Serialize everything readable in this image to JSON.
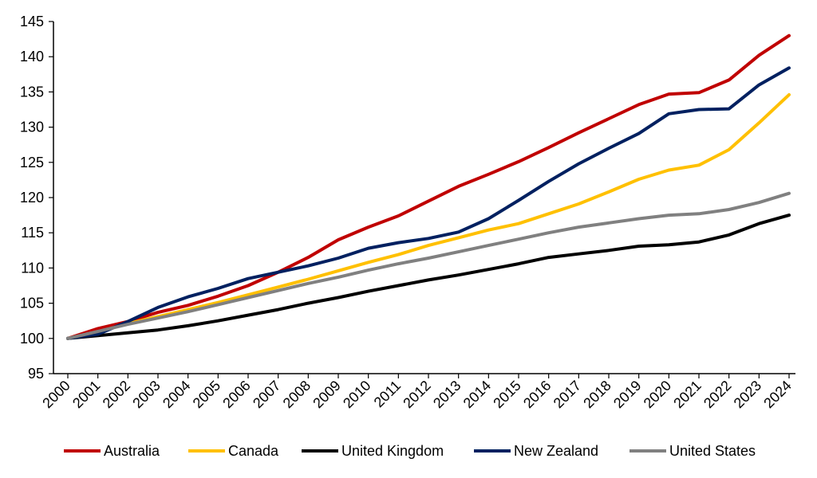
{
  "chart_data": {
    "type": "line",
    "title": "",
    "xlabel": "",
    "ylabel": "",
    "ylim": [
      95,
      145
    ],
    "y_ticks": [
      "95",
      "100",
      "105",
      "110",
      "115",
      "120",
      "125",
      "130",
      "135",
      "140",
      "145"
    ],
    "categories": [
      "2000",
      "2001",
      "2002",
      "2003",
      "2004",
      "2005",
      "2006",
      "2007",
      "2008",
      "2009",
      "2010",
      "2011",
      "2012",
      "2013",
      "2014",
      "2015",
      "2016",
      "2017",
      "2018",
      "2019",
      "2020",
      "2021",
      "2022",
      "2023",
      "2024"
    ],
    "grid": false,
    "legend_position": "bottom",
    "series": [
      {
        "name": "Australia",
        "color": "#C00000",
        "values": [
          100,
          101.4,
          102.4,
          103.7,
          104.7,
          106.0,
          107.5,
          109.4,
          111.5,
          114.0,
          115.8,
          117.4,
          119.5,
          121.6,
          123.3,
          125.1,
          127.1,
          129.2,
          131.2,
          133.2,
          134.7,
          134.9,
          136.7,
          140.2,
          143.0
        ]
      },
      {
        "name": "Canada",
        "color": "#FFC000",
        "values": [
          100,
          100.9,
          102.1,
          103.1,
          104.1,
          105.1,
          106.2,
          107.3,
          108.4,
          109.6,
          110.8,
          111.9,
          113.2,
          114.3,
          115.4,
          116.3,
          117.7,
          119.1,
          120.8,
          122.6,
          123.9,
          124.6,
          126.8,
          130.6,
          134.6
        ]
      },
      {
        "name": "United Kingdom",
        "color": "#000000",
        "values": [
          100,
          100.4,
          100.8,
          101.2,
          101.8,
          102.5,
          103.3,
          104.1,
          105.0,
          105.8,
          106.7,
          107.5,
          108.3,
          109.0,
          109.8,
          110.6,
          111.5,
          112.0,
          112.5,
          113.1,
          113.3,
          113.7,
          114.7,
          116.3,
          117.5
        ]
      },
      {
        "name": "New Zealand",
        "color": "#002060",
        "values": [
          100,
          100.6,
          102.4,
          104.4,
          105.9,
          107.1,
          108.5,
          109.4,
          110.3,
          111.4,
          112.8,
          113.6,
          114.2,
          115.1,
          117.0,
          119.6,
          122.3,
          124.8,
          127.0,
          129.1,
          131.9,
          132.5,
          132.6,
          136.0,
          138.4
        ]
      },
      {
        "name": "United States",
        "color": "#808080",
        "values": [
          100,
          101.0,
          102.0,
          102.9,
          103.8,
          104.8,
          105.8,
          106.8,
          107.8,
          108.7,
          109.7,
          110.6,
          111.4,
          112.3,
          113.2,
          114.1,
          115.0,
          115.8,
          116.4,
          117.0,
          117.5,
          117.7,
          118.3,
          119.3,
          120.6
        ]
      }
    ]
  }
}
